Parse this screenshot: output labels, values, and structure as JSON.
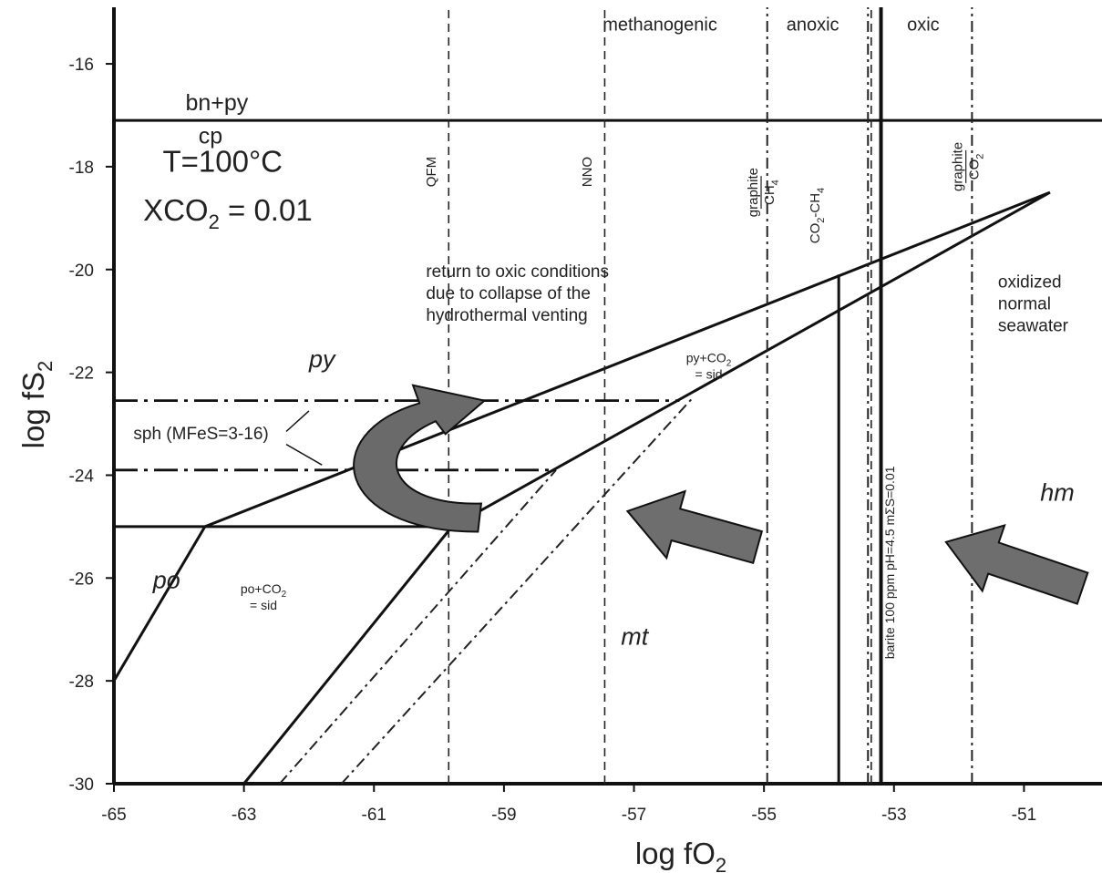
{
  "chart_data": {
    "type": "line",
    "xlabel": "log fO",
    "xlabel_sub": "2",
    "ylabel": "log fS",
    "ylabel_sub": "2",
    "xlim": [
      -65,
      -49.8
    ],
    "ylim": [
      -30,
      -14.9
    ],
    "xticks": [
      -65,
      -63,
      -61,
      -59,
      -57,
      -55,
      -53,
      -51
    ],
    "yticks": [
      -30,
      -28,
      -26,
      -24,
      -22,
      -20,
      -18,
      -16
    ],
    "conditions": {
      "temperature": "T=100°C",
      "xco2_prefix": "XCO",
      "xco2_sub": "2",
      "xco2_value": " = 0.01"
    },
    "solid_lines": [
      {
        "points": [
          [
            -65,
            -17.1
          ],
          [
            -49.8,
            -17.1
          ]
        ]
      },
      {
        "points": [
          [
            -65,
            -25.0
          ],
          [
            -59.8,
            -25.0
          ]
        ]
      },
      {
        "points": [
          [
            -65,
            -28.0
          ],
          [
            -63.6,
            -25.0
          ]
        ]
      },
      {
        "points": [
          [
            -63.6,
            -25.0
          ],
          [
            -50.6,
            -18.5
          ]
        ]
      },
      {
        "points": [
          [
            -59.8,
            -25.0
          ],
          [
            -50.6,
            -18.5
          ]
        ]
      },
      {
        "points": [
          [
            -63.0,
            -30.0
          ],
          [
            -59.8,
            -25.0
          ]
        ]
      },
      {
        "points": [
          [
            -53.85,
            -30.0
          ],
          [
            -53.85,
            -20.1
          ]
        ]
      }
    ],
    "heavy_lines": [
      {
        "points": [
          [
            -53.2,
            -30.0
          ],
          [
            -53.2,
            -14.9
          ]
        ]
      }
    ],
    "dashed_lines": [
      {
        "name": "QFM",
        "points": [
          [
            -59.85,
            -30.0
          ],
          [
            -59.85,
            -14.9
          ]
        ]
      },
      {
        "name": "NNO",
        "points": [
          [
            -57.45,
            -30.0
          ],
          [
            -57.45,
            -14.9
          ]
        ]
      },
      {
        "name": "",
        "points": [
          [
            -53.35,
            -30.0
          ],
          [
            -53.35,
            -14.9
          ]
        ]
      }
    ],
    "dashdot_lines": [
      {
        "points": [
          [
            -54.95,
            -30.0
          ],
          [
            -54.95,
            -14.9
          ]
        ]
      },
      {
        "points": [
          [
            -51.8,
            -30.0
          ],
          [
            -51.8,
            -14.9
          ]
        ]
      },
      {
        "points": [
          [
            -53.4,
            -30.0
          ],
          [
            -53.4,
            -14.9
          ]
        ]
      },
      {
        "points": [
          [
            -62.45,
            -30.0
          ],
          [
            -58.2,
            -23.9
          ]
        ]
      },
      {
        "points": [
          [
            -61.5,
            -30.0
          ],
          [
            -56.1,
            -22.5
          ]
        ]
      }
    ],
    "long_dashdot_lines": [
      {
        "points": [
          [
            -65,
            -22.55
          ],
          [
            -56.3,
            -22.55
          ]
        ]
      },
      {
        "points": [
          [
            -65,
            -23.9
          ],
          [
            -58.2,
            -23.9
          ]
        ]
      }
    ],
    "field_labels": [
      {
        "text": "bn+py",
        "x": -63.9,
        "y": -16.9,
        "style": "field"
      },
      {
        "text": "cp",
        "x": -63.7,
        "y": -17.55,
        "style": "field"
      },
      {
        "text": "py",
        "x": -62.0,
        "y": -21.9,
        "style": "field-it"
      },
      {
        "text": "po",
        "x": -64.4,
        "y": -26.2,
        "style": "field-it"
      },
      {
        "text": "mt",
        "x": -57.2,
        "y": -27.3,
        "style": "field-it"
      },
      {
        "text": "hm",
        "x": -50.75,
        "y": -24.5,
        "style": "field-it"
      }
    ],
    "zone_labels": [
      {
        "text": "methanogenic",
        "x": -56.6,
        "y": -15.35
      },
      {
        "text": "anoxic",
        "x": -54.25,
        "y": -15.35
      },
      {
        "text": "oxic",
        "x": -52.55,
        "y": -15.35
      }
    ],
    "buffer_labels": [
      {
        "text": "QFM",
        "x": -60.05,
        "y": -18.1
      },
      {
        "text": "NNO",
        "x": -57.65,
        "y": -18.1
      }
    ],
    "stacked_labels": [
      {
        "top": "graphite",
        "bottom_main": "CH",
        "bottom_sub": "4",
        "x": -55.1,
        "y": -18.5
      },
      {
        "top": "graphite",
        "bottom_main": "CO",
        "bottom_sub": "2",
        "x": -51.95,
        "y": -18.0
      }
    ],
    "co2_ch4": {
      "main1": "CO",
      "sub1": "2",
      "main2": "-CH",
      "sub2": "4",
      "x": -54.15,
      "y": -18.95
    },
    "barite_label": {
      "text": "barite 100 ppm pH=4.5 mΣS=0.01",
      "x": -53.0,
      "y": -25.7
    },
    "notes": [
      {
        "lines": [
          "return to oxic conditions",
          "due to collapse of the",
          "hydrothermal venting"
        ],
        "x": -60.2,
        "y": -20.15
      },
      {
        "lines": [
          "oxidized",
          "normal",
          "seawater"
        ],
        "x": -51.4,
        "y": -20.35
      }
    ],
    "sph_label": {
      "text": "sph (MFeS=3-16)",
      "x": -64.7,
      "y": -23.3
    },
    "reaction_labels": [
      {
        "main": "py+CO",
        "sub": "2",
        "second": "= sid",
        "x": -55.85,
        "y": -21.8
      },
      {
        "main": "po+CO",
        "sub": "2",
        "second": "= sid",
        "x": -62.7,
        "y": -26.3
      }
    ],
    "arrows": [
      {
        "from": [
          -55.1,
          -25.4
        ],
        "to": [
          -57.1,
          -24.7
        ]
      },
      {
        "from": [
          -50.1,
          -26.2
        ],
        "to": [
          -52.2,
          -25.3
        ]
      }
    ]
  }
}
